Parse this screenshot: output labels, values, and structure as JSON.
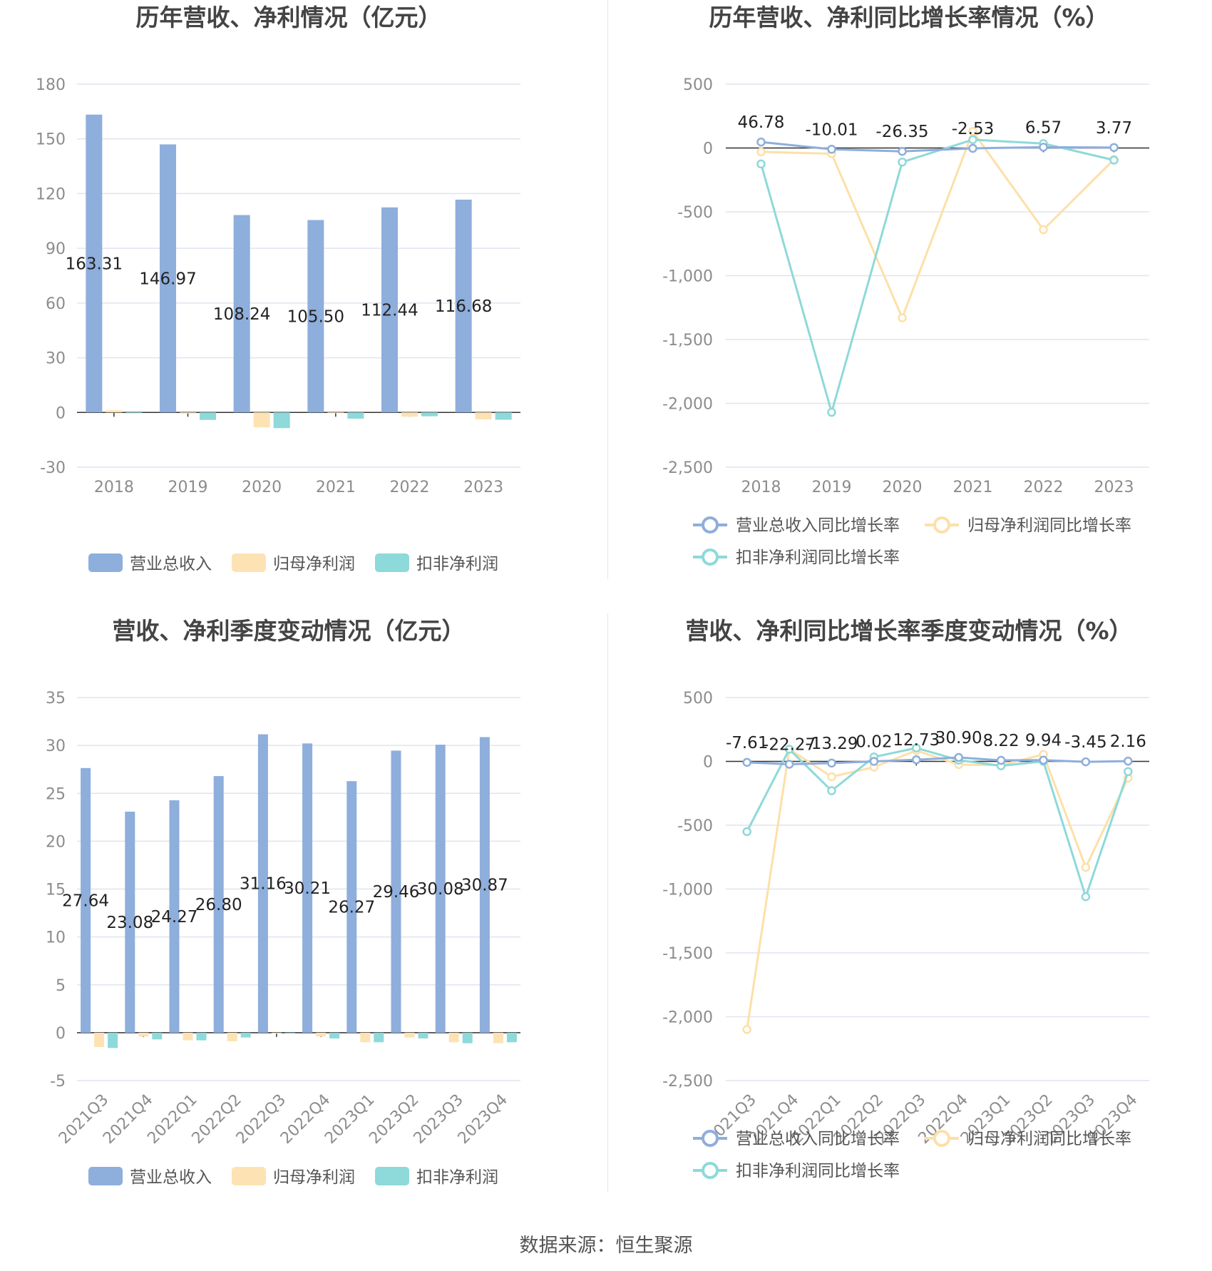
{
  "source_label": "数据来源：",
  "source_name": "恒生聚源",
  "colors": {
    "revenue": "#8eaedc",
    "net_profit": "#fde3b4",
    "deducted_profit": "#8ed9d9",
    "revenue_line": "#8eaedc",
    "net_profit_line": "#fde0a8",
    "deducted_profit_line": "#8ed9d9",
    "grid": "#e0e4ef",
    "axis": "#333333"
  },
  "chart_data": [
    {
      "type": "bar",
      "title": "历年营收、净利情况（亿元）",
      "categories": [
        "2018",
        "2019",
        "2020",
        "2021",
        "2022",
        "2023"
      ],
      "yticks": [
        180,
        150,
        120,
        90,
        60,
        30,
        0,
        -30
      ],
      "ylim": [
        -30,
        180
      ],
      "series": [
        {
          "name": "营业总收入",
          "values": [
            163.31,
            146.97,
            108.24,
            105.5,
            112.44,
            116.68
          ],
          "labels": [
            "163.31",
            "146.97",
            "108.24",
            "105.50",
            "112.44",
            "116.68"
          ]
        },
        {
          "name": "归母净利润",
          "values": [
            1.2,
            -0.6,
            -8.2,
            -0.4,
            -2.3,
            -3.8
          ]
        },
        {
          "name": "扣非净利润",
          "values": [
            -0.3,
            -4.1,
            -8.6,
            -3.4,
            -2.1,
            -4.0
          ]
        }
      ],
      "legend": "bottom"
    },
    {
      "type": "line",
      "title": "历年营收、净利同比增长率情况（%）",
      "categories": [
        "2018",
        "2019",
        "2020",
        "2021",
        "2022",
        "2023"
      ],
      "yticks": [
        "500",
        "0",
        "-500",
        "-1,000",
        "-1,500",
        "-2,000",
        "-2,500"
      ],
      "ylim": [
        -2500,
        500
      ],
      "series": [
        {
          "name": "营业总收入同比增长率",
          "values": [
            46.78,
            -10.01,
            -26.35,
            -2.53,
            6.57,
            3.77
          ],
          "labels": [
            "46.78",
            "-10.01",
            "-26.35",
            "-2.53",
            "6.57",
            "3.77"
          ]
        },
        {
          "name": "归母净利润同比增长率",
          "values": [
            -30,
            -45,
            -1330,
            130,
            -640,
            -90
          ]
        },
        {
          "name": "扣非净利润同比增长率",
          "values": [
            -125,
            -2070,
            -110,
            65,
            35,
            -95
          ]
        }
      ],
      "legend": "bottom"
    },
    {
      "type": "bar",
      "title": "营收、净利季度变动情况（亿元）",
      "categories": [
        "2021Q3",
        "2021Q4",
        "2022Q1",
        "2022Q2",
        "2022Q3",
        "2022Q4",
        "2023Q1",
        "2023Q2",
        "2023Q3",
        "2023Q4"
      ],
      "yticks": [
        35,
        30,
        25,
        20,
        15,
        10,
        5,
        0,
        -5
      ],
      "ylim": [
        -5,
        35
      ],
      "series": [
        {
          "name": "营业总收入",
          "values": [
            27.64,
            23.08,
            24.27,
            26.8,
            31.16,
            30.21,
            26.27,
            29.46,
            30.08,
            30.87
          ],
          "labels": [
            "27.64",
            "23.08",
            "24.27",
            "26.80",
            "31.16",
            "30.21",
            "26.27",
            "29.46",
            "30.08",
            "30.87"
          ]
        },
        {
          "name": "归母净利润",
          "values": [
            -1.5,
            -0.4,
            -0.8,
            -0.9,
            -0.1,
            -0.4,
            -1.0,
            -0.5,
            -1.0,
            -1.1
          ]
        },
        {
          "name": "扣非净利润",
          "values": [
            -1.6,
            -0.7,
            -0.8,
            -0.5,
            -0.1,
            -0.6,
            -1.0,
            -0.6,
            -1.1,
            -1.0
          ]
        }
      ],
      "legend": "bottom"
    },
    {
      "type": "line",
      "title": "营收、净利同比增长率季度变动情况（%）",
      "categories": [
        "2021Q3",
        "2021Q4",
        "2022Q1",
        "2022Q2",
        "2022Q3",
        "2022Q4",
        "2023Q1",
        "2023Q2",
        "2023Q3",
        "2023Q4"
      ],
      "yticks": [
        "500",
        "0",
        "-500",
        "-1,000",
        "-1,500",
        "-2,000",
        "-2,500"
      ],
      "ylim": [
        -2500,
        500
      ],
      "series": [
        {
          "name": "营业总收入同比增长率",
          "values": [
            -7.61,
            -22.27,
            -13.29,
            0.02,
            12.73,
            30.9,
            8.22,
            9.94,
            -3.45,
            2.16
          ],
          "labels": [
            "-7.61",
            "-22.27",
            "-13.29",
            "0.02",
            "12.73",
            "30.90",
            "8.22",
            "9.94",
            "-3.45",
            "2.16"
          ]
        },
        {
          "name": "归母净利润同比增长率",
          "values": [
            -2100,
            95,
            -120,
            -45,
            85,
            -25,
            -30,
            55,
            -830,
            -130
          ]
        },
        {
          "name": "扣非净利润同比增长率",
          "values": [
            -550,
            95,
            -230,
            35,
            105,
            10,
            -35,
            0,
            -1060,
            -80
          ]
        }
      ],
      "legend": "bottom"
    }
  ]
}
